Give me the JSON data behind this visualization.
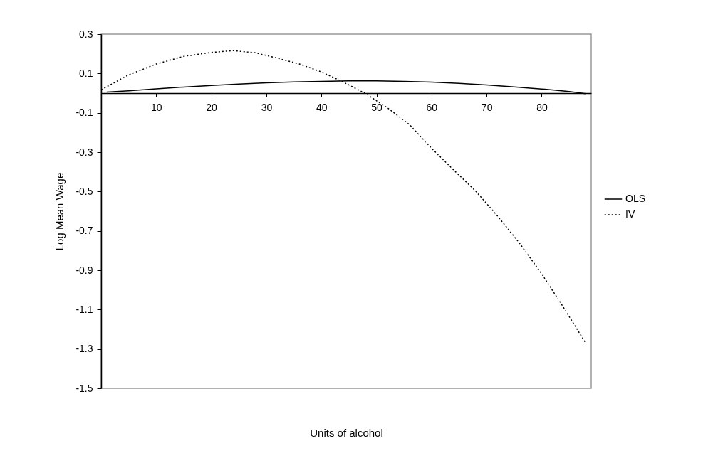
{
  "chart_data": {
    "type": "line",
    "xlabel": "Units of alcohol",
    "ylabel": "Log Mean Wage",
    "xlim": [
      0,
      89
    ],
    "xticks": [
      10,
      20,
      30,
      40,
      50,
      60,
      70,
      80
    ],
    "ylim": [
      -1.5,
      0.3
    ],
    "yticks": [
      0.3,
      0.1,
      -0.1,
      -0.3,
      -0.5,
      -0.7,
      -0.9,
      -1.1,
      -1.3,
      -1.5
    ],
    "legend": "right",
    "series": [
      {
        "name": "OLS",
        "color": "#000000",
        "line_style": "solid",
        "x": [
          1,
          5,
          10,
          15,
          20,
          25,
          30,
          35,
          40,
          45,
          50,
          55,
          60,
          65,
          70,
          75,
          80,
          85,
          88
        ],
        "values": [
          0.005,
          0.012,
          0.022,
          0.031,
          0.039,
          0.046,
          0.052,
          0.057,
          0.06,
          0.062,
          0.062,
          0.06,
          0.056,
          0.05,
          0.042,
          0.032,
          0.021,
          0.008,
          -0.003
        ]
      },
      {
        "name": "IV",
        "color": "#000000",
        "line_style": "dotted",
        "x": [
          0,
          5,
          10,
          15,
          20,
          24,
          28,
          32,
          36,
          40,
          44,
          48,
          52,
          56,
          60,
          64,
          68,
          72,
          76,
          80,
          84,
          88
        ],
        "values": [
          0.017,
          0.093,
          0.148,
          0.187,
          0.207,
          0.216,
          0.205,
          0.178,
          0.148,
          0.108,
          0.056,
          -0.002,
          -0.075,
          -0.16,
          -0.28,
          -0.39,
          -0.497,
          -0.625,
          -0.763,
          -0.918,
          -1.09,
          -1.27
        ]
      }
    ]
  }
}
